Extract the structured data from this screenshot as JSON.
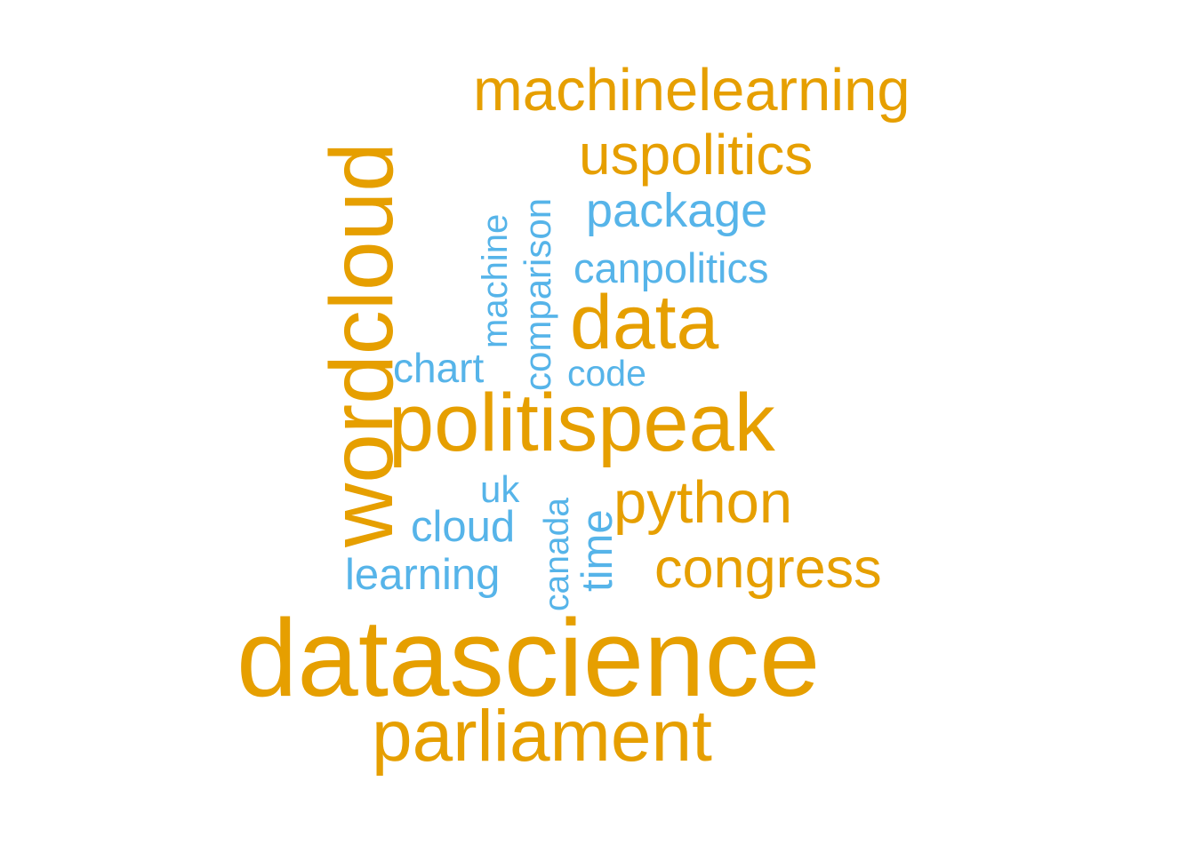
{
  "colors": {
    "primary_terms": "#E69F00",
    "secondary_terms": "#56B4E9",
    "background": "#ffffff"
  },
  "words": {
    "machinelearning": "machinelearning",
    "uspolitics": "uspolitics",
    "package": "package",
    "canpolitics": "canpolitics",
    "data": "data",
    "chart": "chart",
    "code": "code",
    "politispeak": "politispeak",
    "uk": "uk",
    "python": "python",
    "cloud": "cloud",
    "congress": "congress",
    "learning": "learning",
    "datascience": "datascience",
    "parliament": "parliament",
    "wordcloud": "wordcloud",
    "machine": "machine",
    "comparison": "comparison",
    "canada": "canada",
    "time": "time"
  }
}
